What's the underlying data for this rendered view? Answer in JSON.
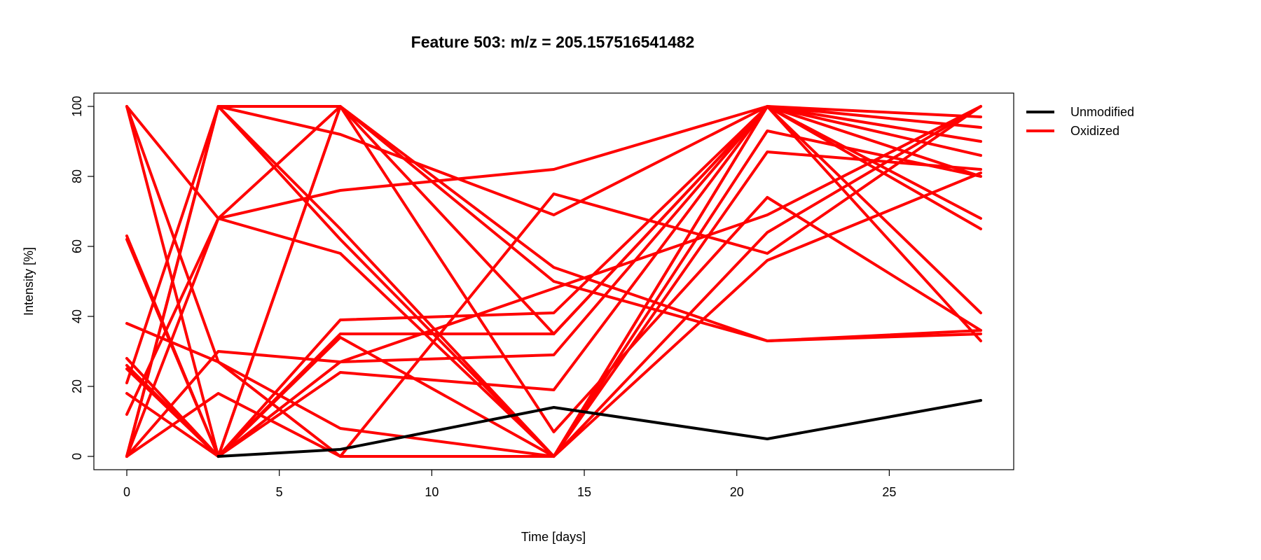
{
  "chart_data": {
    "type": "line",
    "title": "Feature 503: m/z = 205.157516541482",
    "xlabel": "Time [days]",
    "ylabel": "Intensity [%]",
    "xlim": [
      0,
      28
    ],
    "ylim": [
      0,
      100
    ],
    "x": [
      0,
      3,
      7,
      14,
      21,
      28
    ],
    "xticks": [
      0,
      5,
      10,
      15,
      20,
      25
    ],
    "xtick_labels": [
      "0",
      "5",
      "10",
      "15",
      "20",
      "25"
    ],
    "yticks": [
      0,
      20,
      40,
      60,
      80,
      100
    ],
    "ytick_labels": [
      "0",
      "20",
      "40",
      "60",
      "80",
      "100"
    ],
    "grid": false,
    "legend_position": "right-top",
    "legend": [
      {
        "label": "Unmodified",
        "color": "#000000"
      },
      {
        "label": "Oxidized",
        "color": "#ff0000"
      }
    ],
    "series": [
      {
        "group": "Unmodified",
        "color": "#000000",
        "values": [
          null,
          0,
          2,
          14,
          5,
          16
        ]
      },
      {
        "group": "Oxidized",
        "color": "#ff0000",
        "values": [
          100,
          0,
          100,
          54,
          33,
          35
        ]
      },
      {
        "group": "Oxidized",
        "color": "#ff0000",
        "values": [
          100,
          27,
          0,
          75,
          58,
          100
        ]
      },
      {
        "group": "Oxidized",
        "color": "#ff0000",
        "values": [
          62,
          0,
          24,
          19,
          100,
          97
        ]
      },
      {
        "group": "Oxidized",
        "color": "#ff0000",
        "values": [
          63,
          0,
          35,
          35,
          100,
          80
        ]
      },
      {
        "group": "Oxidized",
        "color": "#ff0000",
        "values": [
          38,
          27,
          8,
          0,
          87,
          82
        ]
      },
      {
        "group": "Oxidized",
        "color": "#ff0000",
        "values": [
          28,
          0,
          27,
          29,
          100,
          68
        ]
      },
      {
        "group": "Oxidized",
        "color": "#ff0000",
        "values": [
          26,
          0,
          39,
          41,
          100,
          90
        ]
      },
      {
        "group": "Oxidized",
        "color": "#ff0000",
        "values": [
          18,
          0,
          100,
          35,
          100,
          94
        ]
      },
      {
        "group": "Oxidized",
        "color": "#ff0000",
        "values": [
          0,
          100,
          65,
          0,
          56,
          81
        ]
      },
      {
        "group": "Oxidized",
        "color": "#ff0000",
        "values": [
          0,
          100,
          62,
          0,
          100,
          33
        ]
      },
      {
        "group": "Oxidized",
        "color": "#ff0000",
        "values": [
          0,
          100,
          92,
          69,
          100,
          41
        ]
      },
      {
        "group": "Oxidized",
        "color": "#ff0000",
        "values": [
          0,
          68,
          58,
          0,
          100,
          86
        ]
      },
      {
        "group": "Oxidized",
        "color": "#ff0000",
        "values": [
          12,
          68,
          76,
          82,
          100,
          65
        ]
      },
      {
        "group": "Oxidized",
        "color": "#ff0000",
        "values": [
          21,
          100,
          100,
          7,
          74,
          36
        ]
      },
      {
        "group": "Oxidized",
        "color": "#ff0000",
        "values": [
          0,
          30,
          27,
          48,
          69,
          100
        ]
      },
      {
        "group": "Oxidized",
        "color": "#ff0000",
        "values": [
          0,
          18,
          0,
          0,
          64,
          100
        ]
      },
      {
        "group": "Oxidized",
        "color": "#ff0000",
        "values": [
          25,
          0,
          34,
          0,
          93,
          80
        ]
      },
      {
        "group": "Oxidized",
        "color": "#ff0000",
        "values": [
          100,
          68,
          100,
          50,
          33,
          36
        ]
      }
    ]
  }
}
